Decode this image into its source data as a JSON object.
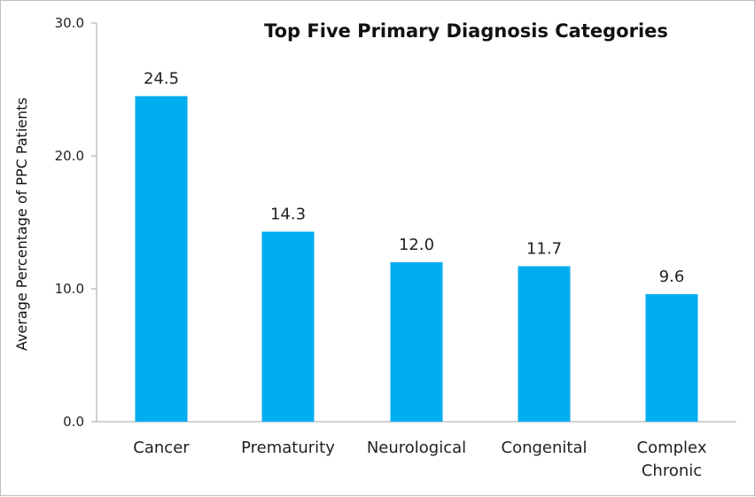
{
  "chart_data": {
    "type": "bar",
    "title": "Top Five Primary Diagnosis Categories",
    "xlabel": "",
    "ylabel": "Average Percentage of PPC Patients",
    "categories": [
      "Cancer",
      "Prematurity",
      "Neurological",
      "Congenital",
      "Complex Chronic"
    ],
    "category_lines": [
      [
        "Cancer"
      ],
      [
        "Prematurity"
      ],
      [
        "Neurological"
      ],
      [
        "Congenital"
      ],
      [
        "Complex",
        "Chronic"
      ]
    ],
    "values": [
      24.5,
      14.3,
      12.0,
      11.7,
      9.6
    ],
    "value_labels": [
      "24.5",
      "14.3",
      "12.0",
      "11.7",
      "9.6"
    ],
    "ylim": [
      0,
      30
    ],
    "yticks": [
      0,
      10,
      20,
      30
    ],
    "ytick_labels": [
      "0.0",
      "10.0",
      "20.0",
      "30.0"
    ],
    "grid": false,
    "legend": "none",
    "bar_color": "#00ADEE",
    "axis_color": "#A6A6A6"
  }
}
